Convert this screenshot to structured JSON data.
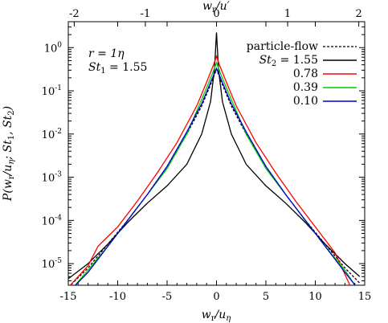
{
  "chart_data": {
    "type": "line",
    "xlabel": "w_r/u_η",
    "x2label": "w_r/u′",
    "ylabel": "P(w_r/u_η; St_1, St_2)",
    "xlim": [
      -15,
      15
    ],
    "ylim_log10": [
      -5.5,
      0.6
    ],
    "yscale": "log",
    "x_ticks": [
      "-15",
      "-10",
      "-5",
      "0",
      "5",
      "10",
      "15"
    ],
    "x_tick_values": [
      -15,
      -10,
      -5,
      0,
      5,
      10,
      15
    ],
    "x2_ticks": [
      "-2",
      "-1",
      "0",
      "1",
      "2"
    ],
    "x2_tick_values": [
      -2,
      -1,
      0,
      1,
      2
    ],
    "x2_scale": 7.2,
    "y_ticks": [
      "10^0",
      "10^-1",
      "10^-2",
      "10^-3",
      "10^-4",
      "10^-5"
    ],
    "y_tick_exponents": [
      0,
      -1,
      -2,
      -3,
      -4,
      -5
    ],
    "annotations": [
      "r = 1η",
      "St_1 = 1.55"
    ],
    "legend_position": "top-right",
    "series": [
      {
        "name": "particle-flow",
        "label": "particle-flow",
        "color": "#000000",
        "dash": "3,2",
        "x": [
          -15,
          -13,
          -11,
          -9,
          -7,
          -5,
          -3,
          -1.5,
          -0.5,
          0,
          0.5,
          1.5,
          3,
          5,
          7,
          9,
          11,
          13,
          14.5
        ],
        "logy": [
          -5.55,
          -5.1,
          -4.55,
          -4.0,
          -3.4,
          -2.75,
          -2.0,
          -1.35,
          -0.8,
          -0.5,
          -0.8,
          -1.35,
          -2.0,
          -2.75,
          -3.4,
          -4.0,
          -4.55,
          -5.1,
          -5.45
        ]
      },
      {
        "name": "St2=1.55",
        "label_prefix": "St",
        "label_sub": "2",
        "label_value": "= 1.55",
        "color": "#000000",
        "dash": "",
        "x": [
          -15,
          -13,
          -11,
          -9,
          -7,
          -5,
          -3,
          -1.5,
          -0.6,
          -0.2,
          0,
          0.2,
          0.6,
          1.5,
          3,
          5,
          7,
          9,
          11,
          13,
          14.5
        ],
        "logy": [
          -5.35,
          -5.0,
          -4.55,
          -4.05,
          -3.6,
          -3.2,
          -2.7,
          -2.0,
          -1.25,
          -0.5,
          0.35,
          -0.5,
          -1.25,
          -2.0,
          -2.7,
          -3.2,
          -3.6,
          -4.05,
          -4.55,
          -5.0,
          -5.3
        ]
      },
      {
        "name": "St2=0.78",
        "label_value": "0.78",
        "color": "#ff0000",
        "dash": "",
        "x": [
          -15,
          -13,
          -12,
          -10,
          -8,
          -6,
          -4,
          -2,
          -1,
          -0.3,
          0,
          0.3,
          1,
          2,
          4,
          6,
          8,
          10,
          12,
          13.5
        ],
        "logy": [
          -5.55,
          -5.05,
          -4.6,
          -4.15,
          -3.55,
          -2.9,
          -2.2,
          -1.35,
          -0.8,
          -0.4,
          -0.2,
          -0.4,
          -0.8,
          -1.35,
          -2.2,
          -2.9,
          -3.55,
          -4.15,
          -4.75,
          -5.5
        ]
      },
      {
        "name": "St2=0.39",
        "label_value": "0.39",
        "color": "#00cc00",
        "dash": "",
        "x": [
          -14.5,
          -13,
          -11,
          -9,
          -7,
          -5,
          -3,
          -1.5,
          -0.5,
          0,
          0.5,
          1.5,
          3,
          5,
          7,
          9,
          11,
          13,
          14
        ],
        "logy": [
          -5.55,
          -5.15,
          -4.6,
          -4.0,
          -3.4,
          -2.8,
          -2.0,
          -1.2,
          -0.65,
          -0.35,
          -0.65,
          -1.2,
          -2.0,
          -2.8,
          -3.4,
          -4.0,
          -4.6,
          -5.15,
          -5.5
        ]
      },
      {
        "name": "St2=0.10",
        "label_value": "0.10",
        "color": "#0000cc",
        "dash": "",
        "x": [
          -14.5,
          -13,
          -11,
          -9,
          -7,
          -5,
          -3,
          -1.5,
          -0.5,
          0,
          0.5,
          1.5,
          3,
          5,
          7,
          9,
          11,
          13,
          14.2
        ],
        "logy": [
          -5.55,
          -5.2,
          -4.6,
          -4.0,
          -3.4,
          -2.75,
          -1.95,
          -1.3,
          -0.75,
          -0.48,
          -0.75,
          -1.3,
          -1.95,
          -2.75,
          -3.4,
          -4.0,
          -4.6,
          -5.2,
          -5.55
        ]
      }
    ]
  }
}
